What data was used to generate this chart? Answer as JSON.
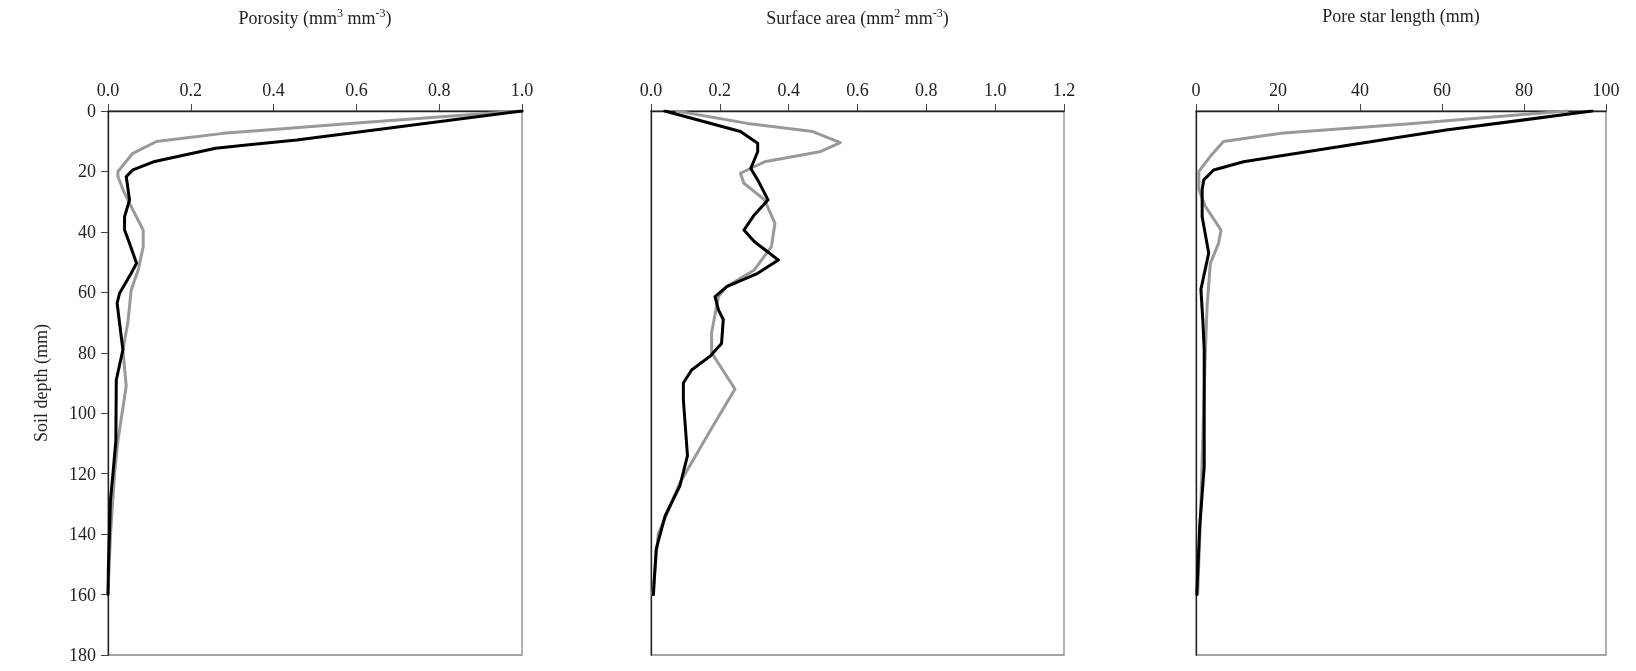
{
  "chart_data": [
    {
      "type": "line",
      "orientation": "horizontal",
      "xlabel": "Porosity (mm$^{3}$ mm$^{-3}$)",
      "ylabel": "Soil depth (mm)",
      "xlim": [
        0,
        1
      ],
      "xticks": [
        {
          "value": 0,
          "label": "0.0"
        },
        {
          "value": 0.2,
          "label": "0.2"
        },
        {
          "value": 0.4,
          "label": "0.4"
        },
        {
          "value": 0.6,
          "label": "0.6"
        },
        {
          "value": 0.8,
          "label": "0.8"
        },
        {
          "value": 1,
          "label": "1.0"
        }
      ],
      "ylim": [
        180,
        0
      ],
      "yticks": [
        0,
        20,
        40,
        60,
        80,
        100,
        120,
        140,
        160,
        180
      ],
      "series": [
        {
          "color": "#999999",
          "x": [
            0,
            4.1,
            7.4,
            10.1,
            14,
            20,
            21.7,
            26,
            32.7,
            39.4,
            44.9,
            52.6,
            59.2,
            70,
            79,
            91,
            109,
            120,
            140,
            160
          ],
          "values": [
            1.0,
            0.585,
            0.278,
            0.117,
            0.06,
            0.024,
            0.024,
            0.036,
            0.06,
            0.085,
            0.085,
            0.073,
            0.056,
            0.048,
            0.036,
            0.044,
            0.024,
            0.016,
            0.006,
            0
          ]
        },
        {
          "color": "#000000",
          "x": [
            0,
            9.6,
            12.3,
            16.8,
            19.5,
            21.7,
            29.4,
            35,
            39.4,
            43.8,
            50.4,
            53.7,
            60.3,
            63.6,
            79,
            89,
            109,
            120,
            128.6,
            151,
            160
          ],
          "values": [
            1.0,
            0.456,
            0.26,
            0.11,
            0.06,
            0.044,
            0.052,
            0.04,
            0.04,
            0.052,
            0.069,
            0.056,
            0.028,
            0.022,
            0.036,
            0.02,
            0.019,
            0.012,
            0.006,
            0.001,
            0
          ]
        }
      ]
    },
    {
      "type": "line",
      "orientation": "horizontal",
      "xlabel": "Surface area (mm$^{2}$ mm$^{-3}$)",
      "tick_labels": "x",
      "xlim": [
        0,
        1.2
      ],
      "xticks": [
        {
          "value": 0,
          "label": "0.0"
        },
        {
          "value": 0.2,
          "label": "0.2"
        },
        {
          "value": 0.4,
          "label": "0.4"
        },
        {
          "value": 0.6,
          "label": "0.6"
        },
        {
          "value": 0.8,
          "label": "0.8"
        },
        {
          "value": 1,
          "label": "1.0"
        },
        {
          "value": 1.2,
          "label": "1.2"
        }
      ],
      "ylim": [
        180,
        0
      ],
      "yticks": [
        0,
        20,
        40,
        60,
        80,
        100,
        120,
        140,
        160,
        180
      ],
      "series": [
        {
          "color": "#999999",
          "x": [
            0,
            4.1,
            6.8,
            10.5,
            13.5,
            16.8,
            20.6,
            23.9,
            29.4,
            37.2,
            44.9,
            52.6,
            58.1,
            61.4,
            73.4,
            80,
            92,
            106,
            123,
            140,
            160
          ],
          "values": [
            0.075,
            0.28,
            0.47,
            0.55,
            0.49,
            0.33,
            0.26,
            0.27,
            0.33,
            0.36,
            0.35,
            0.3,
            0.22,
            0.196,
            0.176,
            0.176,
            0.244,
            0.171,
            0.084,
            0.021,
            0.005
          ]
        },
        {
          "color": "#000000",
          "x": [
            0,
            6.8,
            10.7,
            13.5,
            19,
            22.8,
            29.4,
            34.4,
            39.4,
            43.2,
            49.3,
            53.7,
            58.1,
            61.4,
            65.8,
            69,
            76.9,
            81.2,
            85.7,
            90,
            95.5,
            114,
            124,
            134,
            145,
            160
          ],
          "values": [
            0.04,
            0.26,
            0.31,
            0.31,
            0.29,
            0.31,
            0.34,
            0.3,
            0.27,
            0.3,
            0.37,
            0.31,
            0.22,
            0.186,
            0.196,
            0.21,
            0.205,
            0.171,
            0.118,
            0.094,
            0.094,
            0.106,
            0.084,
            0.041,
            0.015,
            0.007
          ]
        }
      ]
    },
    {
      "type": "line",
      "orientation": "horizontal",
      "xlabel": "Pore star length (mm)",
      "tick_labels": "x",
      "xlim": [
        0,
        100
      ],
      "xticks": [
        0,
        20,
        40,
        60,
        80,
        100
      ],
      "ylim": [
        180,
        0
      ],
      "yticks": [
        0,
        20,
        40,
        60,
        80,
        100,
        120,
        140,
        160,
        180
      ],
      "series": [
        {
          "color": "#999999",
          "x": [
            0,
            4.1,
            7.4,
            10.1,
            15,
            20,
            26,
            31.6,
            39.4,
            43.8,
            50.4,
            64.7,
            79,
            106.6,
            134,
            160
          ],
          "values": [
            90.5,
            53,
            20.6,
            6.7,
            3.5,
            0.7,
            0.7,
            2.3,
            6.1,
            5.5,
            3.5,
            2.7,
            2.3,
            1.7,
            1.1,
            0.4
          ]
        },
        {
          "color": "#000000",
          "x": [
            0,
            6.3,
            9,
            13.5,
            16.8,
            19.5,
            22.8,
            26,
            35,
            47,
            59,
            70,
            79,
            117.8,
            137.6,
            160
          ],
          "values": [
            96.6,
            61,
            48,
            27,
            11.6,
            4.3,
            1.9,
            1.5,
            1.5,
            3.1,
            1.2,
            1.7,
            2.0,
            2.0,
            0.9,
            0.2
          ]
        }
      ]
    }
  ]
}
